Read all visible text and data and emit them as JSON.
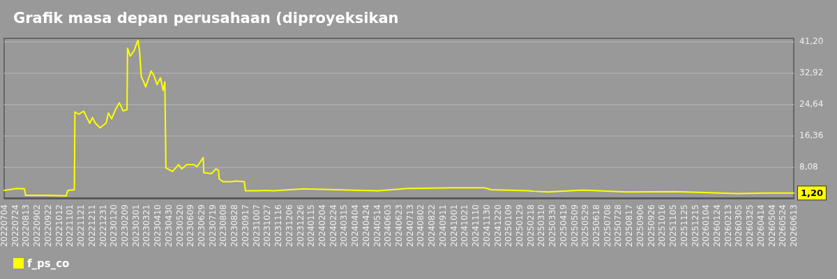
{
  "chart_data": {
    "type": "line",
    "title": "Grafik masa depan perusahaan (diproyeksikan",
    "legend": "bottom left",
    "grid": "y",
    "marker": "none",
    "line_style": "solid",
    "xlim": [
      "2022-07-04",
      "2026-06-13"
    ],
    "xticks": [
      {
        "value": "2022-07-04",
        "label": "20220704"
      },
      {
        "value": "2022-07-24",
        "label": "20220724"
      },
      {
        "value": "2022-08-13",
        "label": "20220813"
      },
      {
        "value": "2022-09-02",
        "label": "20220902"
      },
      {
        "value": "2022-09-22",
        "label": "20220922"
      },
      {
        "value": "2022-10-12",
        "label": "20221012"
      },
      {
        "value": "2022-11-01",
        "label": "20221101"
      },
      {
        "value": "2022-11-21",
        "label": "20221121"
      },
      {
        "value": "2022-12-11",
        "label": "20221211"
      },
      {
        "value": "2022-12-31",
        "label": "20221231"
      },
      {
        "value": "2023-01-20",
        "label": "20230120"
      },
      {
        "value": "2023-02-09",
        "label": "20230209"
      },
      {
        "value": "2023-03-01",
        "label": "20230301"
      },
      {
        "value": "2023-03-21",
        "label": "20230321"
      },
      {
        "value": "2023-04-10",
        "label": "20230410"
      },
      {
        "value": "2023-04-30",
        "label": "20230430"
      },
      {
        "value": "2023-05-20",
        "label": "20230520"
      },
      {
        "value": "2023-06-09",
        "label": "20230609"
      },
      {
        "value": "2023-06-29",
        "label": "20230629"
      },
      {
        "value": "2023-07-19",
        "label": "20230719"
      },
      {
        "value": "2023-08-08",
        "label": "20230808"
      },
      {
        "value": "2023-08-28",
        "label": "20230828"
      },
      {
        "value": "2023-09-17",
        "label": "20230917"
      },
      {
        "value": "2023-10-07",
        "label": "20231007"
      },
      {
        "value": "2023-10-27",
        "label": "20231027"
      },
      {
        "value": "2023-11-16",
        "label": "20231116"
      },
      {
        "value": "2023-12-06",
        "label": "20231206"
      },
      {
        "value": "2023-12-26",
        "label": "20231226"
      },
      {
        "value": "2024-01-15",
        "label": "20240115"
      },
      {
        "value": "2024-02-04",
        "label": "20240204"
      },
      {
        "value": "2024-02-24",
        "label": "20240224"
      },
      {
        "value": "2024-03-15",
        "label": "20240315"
      },
      {
        "value": "2024-04-04",
        "label": "20240404"
      },
      {
        "value": "2024-04-24",
        "label": "20240424"
      },
      {
        "value": "2024-05-14",
        "label": "20240514"
      },
      {
        "value": "2024-06-03",
        "label": "20240603"
      },
      {
        "value": "2024-06-23",
        "label": "20240623"
      },
      {
        "value": "2024-07-13",
        "label": "20240713"
      },
      {
        "value": "2024-08-02",
        "label": "20240802"
      },
      {
        "value": "2024-08-22",
        "label": "20240822"
      },
      {
        "value": "2024-09-11",
        "label": "20240911"
      },
      {
        "value": "2024-10-01",
        "label": "20241001"
      },
      {
        "value": "2024-10-21",
        "label": "20241021"
      },
      {
        "value": "2024-11-10",
        "label": "20241110"
      },
      {
        "value": "2024-11-30",
        "label": "20241130"
      },
      {
        "value": "2024-12-20",
        "label": "20241220"
      },
      {
        "value": "2025-01-09",
        "label": "20250109"
      },
      {
        "value": "2025-01-29",
        "label": "20250129"
      },
      {
        "value": "2025-02-18",
        "label": "20250218"
      },
      {
        "value": "2025-03-10",
        "label": "20250310"
      },
      {
        "value": "2025-03-30",
        "label": "20250330"
      },
      {
        "value": "2025-04-19",
        "label": "20250419"
      },
      {
        "value": "2025-05-09",
        "label": "20250509"
      },
      {
        "value": "2025-05-29",
        "label": "20250529"
      },
      {
        "value": "2025-06-18",
        "label": "20250618"
      },
      {
        "value": "2025-07-08",
        "label": "20250708"
      },
      {
        "value": "2025-07-28",
        "label": "20250728"
      },
      {
        "value": "2025-08-17",
        "label": "20250817"
      },
      {
        "value": "2025-09-06",
        "label": "20250906"
      },
      {
        "value": "2025-09-26",
        "label": "20250926"
      },
      {
        "value": "2025-10-16",
        "label": "20251016"
      },
      {
        "value": "2025-11-05",
        "label": "20251105"
      },
      {
        "value": "2025-11-25",
        "label": "20251125"
      },
      {
        "value": "2025-12-15",
        "label": "20251215"
      },
      {
        "value": "2026-01-04",
        "label": "20260104"
      },
      {
        "value": "2026-01-24",
        "label": "20260124"
      },
      {
        "value": "2026-02-13",
        "label": "20260213"
      },
      {
        "value": "2026-03-05",
        "label": "20260305"
      },
      {
        "value": "2026-03-25",
        "label": "20260325"
      },
      {
        "value": "2026-04-14",
        "label": "20260414"
      },
      {
        "value": "2026-05-04",
        "label": "20260504"
      },
      {
        "value": "2026-05-24",
        "label": "20260524"
      },
      {
        "value": "2026-06-13",
        "label": "20260613"
      }
    ],
    "ylim": [
      -0.3,
      42
    ],
    "yticks": [
      {
        "value": 8.08,
        "label": "8,08"
      },
      {
        "value": 16.36,
        "label": "16,36"
      },
      {
        "value": 24.64,
        "label": "24,64"
      },
      {
        "value": 32.92,
        "label": "32,92"
      },
      {
        "value": 41.2,
        "label": "41,20"
      }
    ],
    "annotations": [
      {
        "text": "1,20",
        "x": "2026-06-13",
        "y": 1.2
      }
    ],
    "series": [
      {
        "name": "f_ps_co",
        "color": "#ffff00",
        "x": [
          "2022-07-04",
          "2022-07-27",
          "2022-08-10",
          "2022-08-12",
          "2022-09-19",
          "2022-10-25",
          "2022-10-28",
          "2022-11-09",
          "2022-11-10",
          "2022-11-17",
          "2022-11-26",
          "2022-12-07",
          "2022-12-12",
          "2022-12-17",
          "2022-12-26",
          "2023-01-06",
          "2023-01-10",
          "2023-01-16",
          "2023-01-23",
          "2023-01-30",
          "2023-02-06",
          "2023-02-13",
          "2023-02-14",
          "2023-02-19",
          "2023-02-26",
          "2023-03-05",
          "2023-03-08",
          "2023-03-11",
          "2023-03-15",
          "2023-03-19",
          "2023-03-29",
          "2023-04-03",
          "2023-04-09",
          "2023-04-15",
          "2023-04-20",
          "2023-04-23",
          "2023-04-25",
          "2023-05-07",
          "2023-05-18",
          "2023-05-24",
          "2023-06-02",
          "2023-06-15",
          "2023-06-21",
          "2023-06-28",
          "2023-07-02",
          "2023-07-03",
          "2023-07-17",
          "2023-07-25",
          "2023-07-30",
          "2023-07-31",
          "2023-08-07",
          "2023-08-22",
          "2023-08-31",
          "2023-09-15",
          "2023-09-17",
          "2023-10-08",
          "2023-10-25",
          "2023-11-07",
          "2024-01-01",
          "2024-05-17",
          "2024-07-08",
          "2024-10-01",
          "2024-11-26",
          "2024-12-08",
          "2025-02-14",
          "2025-02-23",
          "2025-03-21",
          "2025-05-24",
          "2025-08-13",
          "2025-11-07",
          "2026-03-02",
          "2026-04-26",
          "2026-06-13"
        ],
        "values": [
          1.9,
          2.4,
          2.3,
          0.6,
          0.6,
          0.5,
          1.9,
          2.1,
          22.6,
          22.0,
          22.8,
          19.6,
          21.1,
          19.7,
          18.4,
          19.7,
          22.3,
          20.8,
          23.2,
          25.0,
          22.9,
          23.2,
          39.4,
          37.3,
          38.8,
          41.5,
          38.5,
          31.9,
          30.7,
          29.2,
          33.4,
          32.2,
          29.8,
          31.6,
          28.3,
          30.5,
          7.8,
          6.9,
          8.7,
          7.6,
          8.7,
          8.7,
          8.2,
          9.7,
          10.6,
          6.6,
          6.3,
          7.6,
          7.2,
          5.0,
          4.2,
          4.2,
          4.4,
          4.2,
          1.8,
          1.8,
          1.9,
          1.8,
          2.3,
          1.8,
          2.4,
          2.6,
          2.6,
          2.1,
          1.8,
          1.7,
          1.5,
          2.0,
          1.5,
          1.6,
          1.1,
          1.2,
          1.2
        ]
      }
    ]
  }
}
